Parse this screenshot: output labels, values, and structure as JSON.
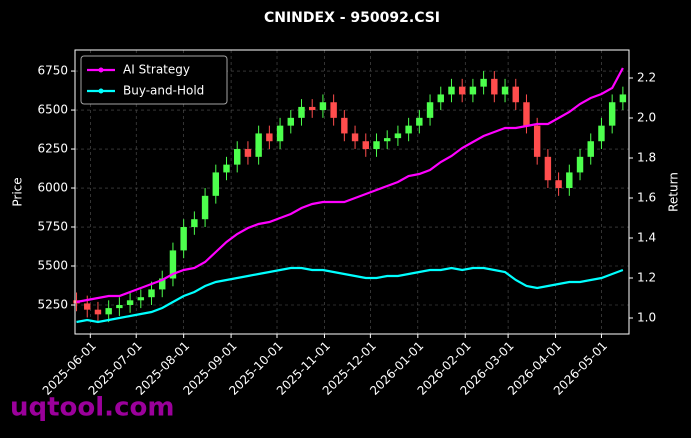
{
  "chart_data": {
    "type": "candlestick",
    "title": "CNINDEX - 950092.CSI",
    "ylabel": "Price",
    "y2label": "Return",
    "watermark": "uqtool.com",
    "up_color": "#4dff4d",
    "down_color": "#ff4d4d",
    "grid": true,
    "legend": "upper left",
    "x": [
      "2025-05-23",
      "2025-05-30",
      "2025-06-06",
      "2025-06-13",
      "2025-06-20",
      "2025-06-27",
      "2025-07-04",
      "2025-07-11",
      "2025-07-18",
      "2025-07-25",
      "2025-08-01",
      "2025-08-08",
      "2025-08-15",
      "2025-08-22",
      "2025-08-29",
      "2025-09-05",
      "2025-09-12",
      "2025-09-19",
      "2025-09-26",
      "2025-10-03",
      "2025-10-10",
      "2025-10-17",
      "2025-10-24",
      "2025-10-31",
      "2025-11-07",
      "2025-11-14",
      "2025-11-21",
      "2025-11-28",
      "2025-12-05",
      "2025-12-12",
      "2025-12-19",
      "2025-12-26",
      "2026-01-02",
      "2026-01-09",
      "2026-01-16",
      "2026-01-23",
      "2026-01-30",
      "2026-02-06",
      "2026-02-13",
      "2026-02-20",
      "2026-02-27",
      "2026-03-06",
      "2026-03-13",
      "2026-03-20",
      "2026-03-27",
      "2026-04-03",
      "2026-04-10",
      "2026-04-17",
      "2026-04-24",
      "2026-05-01",
      "2026-05-08",
      "2026-05-15"
    ],
    "open": [
      5280,
      5260,
      5220,
      5190,
      5230,
      5250,
      5280,
      5300,
      5350,
      5420,
      5600,
      5750,
      5800,
      5950,
      6100,
      6150,
      6250,
      6200,
      6350,
      6300,
      6400,
      6450,
      6520,
      6500,
      6550,
      6450,
      6350,
      6300,
      6250,
      6300,
      6320,
      6350,
      6400,
      6450,
      6550,
      6600,
      6650,
      6600,
      6650,
      6700,
      6600,
      6650,
      6550,
      6400,
      6200,
      6050,
      6000,
      6100,
      6200,
      6300,
      6400,
      6550
    ],
    "high": [
      5330,
      5310,
      5270,
      5280,
      5300,
      5330,
      5350,
      5400,
      5470,
      5650,
      5800,
      5850,
      6000,
      6150,
      6200,
      6300,
      6300,
      6400,
      6400,
      6450,
      6500,
      6570,
      6570,
      6600,
      6600,
      6500,
      6400,
      6350,
      6350,
      6370,
      6400,
      6450,
      6500,
      6600,
      6650,
      6700,
      6700,
      6700,
      6750,
      6750,
      6700,
      6700,
      6600,
      6450,
      6250,
      6100,
      6150,
      6250,
      6350,
      6450,
      6600,
      6650
    ],
    "low": [
      5210,
      5170,
      5140,
      5140,
      5180,
      5200,
      5230,
      5250,
      5300,
      5370,
      5550,
      5700,
      5750,
      5900,
      6050,
      6100,
      6150,
      6150,
      6250,
      6250,
      6350,
      6400,
      6450,
      6450,
      6400,
      6300,
      6250,
      6200,
      6200,
      6250,
      6270,
      6300,
      6350,
      6400,
      6500,
      6550,
      6550,
      6550,
      6600,
      6550,
      6550,
      6500,
      6350,
      6150,
      6000,
      5950,
      5950,
      6050,
      6150,
      6250,
      6350,
      6500
    ],
    "close": [
      5260,
      5220,
      5190,
      5230,
      5250,
      5280,
      5300,
      5350,
      5420,
      5600,
      5750,
      5800,
      5950,
      6100,
      6150,
      6250,
      6200,
      6350,
      6300,
      6400,
      6450,
      6520,
      6500,
      6550,
      6450,
      6350,
      6300,
      6250,
      6300,
      6320,
      6350,
      6400,
      6450,
      6550,
      6600,
      6650,
      6600,
      6650,
      6700,
      6600,
      6650,
      6550,
      6400,
      6200,
      6050,
      6000,
      6100,
      6200,
      6300,
      6400,
      6550,
      6600
    ],
    "series": [
      {
        "name": "AI Strategy",
        "color": "#ff00ff",
        "axis": "y2",
        "values": [
          1.08,
          1.09,
          1.1,
          1.11,
          1.11,
          1.13,
          1.15,
          1.17,
          1.19,
          1.22,
          1.24,
          1.25,
          1.28,
          1.33,
          1.38,
          1.42,
          1.45,
          1.47,
          1.48,
          1.5,
          1.52,
          1.55,
          1.57,
          1.58,
          1.58,
          1.58,
          1.6,
          1.62,
          1.64,
          1.66,
          1.68,
          1.71,
          1.72,
          1.74,
          1.78,
          1.81,
          1.85,
          1.88,
          1.91,
          1.93,
          1.95,
          1.95,
          1.96,
          1.97,
          1.97,
          2.0,
          2.03,
          2.07,
          2.1,
          2.12,
          2.15,
          2.25
        ]
      },
      {
        "name": "Buy-and-Hold",
        "color": "#00ffff",
        "axis": "y2",
        "values": [
          0.98,
          0.99,
          0.98,
          0.99,
          1.0,
          1.01,
          1.02,
          1.03,
          1.05,
          1.08,
          1.11,
          1.13,
          1.16,
          1.18,
          1.19,
          1.2,
          1.21,
          1.22,
          1.23,
          1.24,
          1.25,
          1.25,
          1.24,
          1.24,
          1.23,
          1.22,
          1.21,
          1.2,
          1.2,
          1.21,
          1.21,
          1.22,
          1.23,
          1.24,
          1.24,
          1.25,
          1.24,
          1.25,
          1.25,
          1.24,
          1.23,
          1.19,
          1.16,
          1.15,
          1.16,
          1.17,
          1.18,
          1.18,
          1.19,
          1.2,
          1.22,
          1.24
        ]
      }
    ],
    "xlim": [
      "2025-05-22",
      "2026-05-19"
    ],
    "xticks": [
      "2025-06-01",
      "2025-07-01",
      "2025-08-01",
      "2025-09-01",
      "2025-10-01",
      "2025-11-01",
      "2025-12-01",
      "2026-01-01",
      "2026-02-01",
      "2026-03-01",
      "2026-04-01",
      "2026-05-01"
    ],
    "ylim": [
      5064,
      6885
    ],
    "yticks": [
      5250,
      5500,
      5750,
      6000,
      6250,
      6500,
      6750
    ],
    "y2lim": [
      0.92,
      2.34
    ],
    "y2ticks": [
      {
        "value": 1,
        "label": "1.0"
      },
      1.2,
      1.4,
      1.6,
      1.8,
      {
        "value": 2,
        "label": "2.0"
      },
      2.2
    ]
  }
}
